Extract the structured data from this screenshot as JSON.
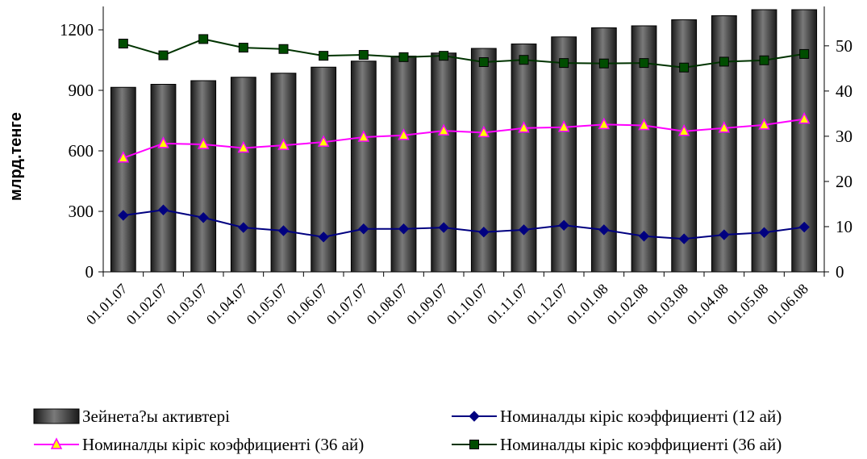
{
  "chart_data": {
    "type": "bar",
    "ylabel": "млрд.тенге",
    "ylim": [
      0,
      1300
    ],
    "y_ticks": [
      0,
      300,
      600,
      900,
      1200
    ],
    "y2lim": [
      0,
      58
    ],
    "y2_ticks": [
      0,
      10,
      20,
      30,
      40,
      50
    ],
    "grid": false,
    "legend_position": "bottom",
    "categories": [
      "01.01.07",
      "01.02.07",
      "01.03.07",
      "01.04.07",
      "01.05.07",
      "01.06.07",
      "01.07.07",
      "01.08.07",
      "01.09.07",
      "01.10.07",
      "01.11.07",
      "01.12.07",
      "01.01.08",
      "01.02.08",
      "01.03.08",
      "01.04.08",
      "01.05.08",
      "01.06.08"
    ],
    "series": [
      {
        "name": "Зейнета?ы активтері",
        "type": "bar",
        "axis": "left",
        "color": "#2b2b2b",
        "values": [
          915,
          930,
          948,
          965,
          985,
          1015,
          1045,
          1070,
          1085,
          1108,
          1130,
          1165,
          1210,
          1220,
          1250,
          1270,
          1300,
          1340
        ]
      },
      {
        "name": "Номиналды кіріс коэффициенті (12 ай)",
        "type": "line",
        "axis": "right",
        "color": "#000080",
        "marker": "diamond",
        "marker_fill": "#000080",
        "values": [
          12.5,
          13.7,
          12.0,
          9.8,
          9.1,
          7.7,
          9.5,
          9.5,
          9.8,
          8.8,
          9.3,
          10.3,
          9.3,
          7.9,
          7.3,
          8.2,
          8.7,
          9.9
        ]
      },
      {
        "name": "Номиналды кіріс коэффициенті (36 ай)",
        "type": "line",
        "axis": "right",
        "color": "#ff00ff",
        "marker": "triangle",
        "marker_fill": "#ffff00",
        "values": [
          25.2,
          28.4,
          28.2,
          27.4,
          28.0,
          28.7,
          29.8,
          30.2,
          31.2,
          30.8,
          31.8,
          32.0,
          32.6,
          32.4,
          31.1,
          31.8,
          32.5,
          33.8
        ]
      },
      {
        "name": "Номиналды кіріс коэффициенті (36 ай)",
        "type": "line",
        "axis": "right",
        "color": "#003300",
        "marker": "square",
        "marker_fill": "#004d00",
        "values": [
          50.5,
          47.9,
          51.5,
          49.6,
          49.3,
          47.8,
          48.0,
          47.5,
          47.8,
          46.4,
          46.9,
          46.2,
          46.1,
          46.2,
          45.2,
          46.5,
          46.8,
          48.2
        ]
      }
    ]
  }
}
